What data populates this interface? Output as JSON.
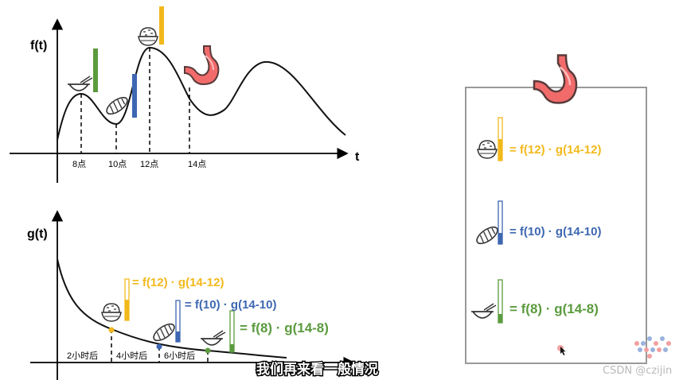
{
  "colors": {
    "axis": "#000000",
    "curve": "#111111",
    "breakfast": "#5b9b3e",
    "bread": "#3d67b1",
    "rice": "#f2b91c",
    "stomach": "#f26b6b",
    "frame": "#999999"
  },
  "top_plot": {
    "y_label": "f(t)",
    "x_label": "t",
    "ticks": [
      "8点",
      "10点",
      "12点",
      "14点"
    ]
  },
  "bottom_plot": {
    "y_label": "g(t)",
    "segment_labels": [
      "2小时后",
      "4小时后",
      "6小时后"
    ],
    "formulas": [
      {
        "text": "= f(12) · g(14-12)",
        "color": "#f2b91c"
      },
      {
        "text": "= f(10) · g(14-10)",
        "color": "#3d67b1"
      },
      {
        "text": "= f(8) · g(14-8)",
        "color": "#5b9b3e"
      }
    ]
  },
  "panel": {
    "formulas": [
      {
        "text": "= f(12) · g(14-12)",
        "color": "#f2b91c",
        "fill": 0.5
      },
      {
        "text": "= f(10) · g(14-10)",
        "color": "#3d67b1",
        "fill": 0.25
      },
      {
        "text": "= f(8) · g(14-8)",
        "color": "#5b9b3e",
        "fill": 0.2
      }
    ]
  },
  "icons": {
    "bowl": "bowl-icon",
    "bread": "bread-icon",
    "rice": "rice-bowl-icon",
    "stomach": "stomach-icon"
  },
  "subtitle": "我们再来看一般情况",
  "watermark": "CSDN @czijin"
}
